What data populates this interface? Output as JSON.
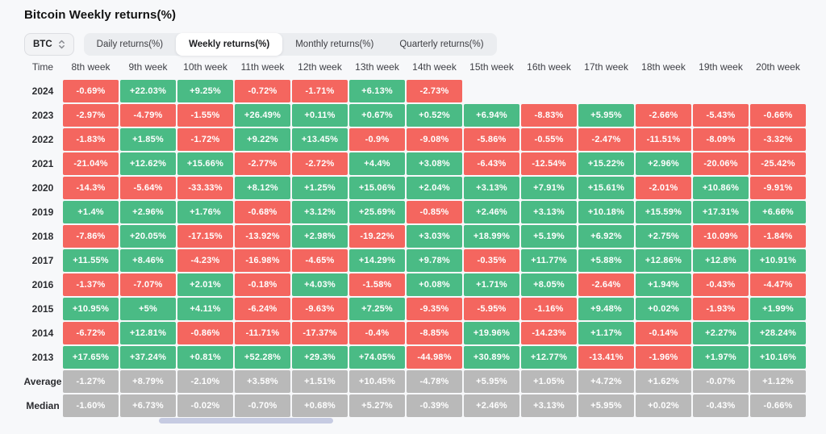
{
  "title": "Bitcoin Weekly returns(%)",
  "asset_selector": {
    "value": "BTC",
    "icon": "up-down-arrows-icon"
  },
  "tabs": [
    {
      "label": "Daily returns(%)",
      "active": false
    },
    {
      "label": "Weekly returns(%)",
      "active": true
    },
    {
      "label": "Monthly returns(%)",
      "active": false
    },
    {
      "label": "Quarterly returns(%)",
      "active": false
    }
  ],
  "colors": {
    "positive": "#4abb85",
    "negative": "#f4665f",
    "summary": "#b9b9b9",
    "scrollbar": "#c6cbe2"
  },
  "table": {
    "time_header": "Time",
    "columns": [
      "8th week",
      "9th week",
      "10th week",
      "11th week",
      "12th week",
      "13th week",
      "14th week",
      "15th week",
      "16th week",
      "17th week",
      "18th week",
      "19th week",
      "20th week"
    ],
    "rows": [
      {
        "label": "2024",
        "type": "year",
        "values": [
          "-0.69%",
          "+22.03%",
          "+9.25%",
          "-0.72%",
          "-1.71%",
          "+6.13%",
          "-2.73%",
          null,
          null,
          null,
          null,
          null,
          null
        ]
      },
      {
        "label": "2023",
        "type": "year",
        "values": [
          "-2.97%",
          "-4.79%",
          "-1.55%",
          "+26.49%",
          "+0.11%",
          "+0.67%",
          "+0.52%",
          "+6.94%",
          "-8.83%",
          "+5.95%",
          "-2.66%",
          "-5.43%",
          "-0.66%"
        ]
      },
      {
        "label": "2022",
        "type": "year",
        "values": [
          "-1.83%",
          "+1.85%",
          "-1.72%",
          "+9.22%",
          "+13.45%",
          "-0.9%",
          "-9.08%",
          "-5.86%",
          "-0.55%",
          "-2.47%",
          "-11.51%",
          "-8.09%",
          "-3.32%"
        ]
      },
      {
        "label": "2021",
        "type": "year",
        "values": [
          "-21.04%",
          "+12.62%",
          "+15.66%",
          "-2.77%",
          "-2.72%",
          "+4.4%",
          "+3.08%",
          "-6.43%",
          "-12.54%",
          "+15.22%",
          "+2.96%",
          "-20.06%",
          "-25.42%"
        ]
      },
      {
        "label": "2020",
        "type": "year",
        "values": [
          "-14.3%",
          "-5.64%",
          "-33.33%",
          "+8.12%",
          "+1.25%",
          "+15.06%",
          "+2.04%",
          "+3.13%",
          "+7.91%",
          "+15.61%",
          "-2.01%",
          "+10.86%",
          "-9.91%"
        ]
      },
      {
        "label": "2019",
        "type": "year",
        "values": [
          "+1.4%",
          "+2.96%",
          "+1.76%",
          "-0.68%",
          "+3.12%",
          "+25.69%",
          "-0.85%",
          "+2.46%",
          "+3.13%",
          "+10.18%",
          "+15.59%",
          "+17.31%",
          "+6.66%"
        ]
      },
      {
        "label": "2018",
        "type": "year",
        "values": [
          "-7.86%",
          "+20.05%",
          "-17.15%",
          "-13.92%",
          "+2.98%",
          "-19.22%",
          "+3.03%",
          "+18.99%",
          "+5.19%",
          "+6.92%",
          "+2.75%",
          "-10.09%",
          "-1.84%"
        ]
      },
      {
        "label": "2017",
        "type": "year",
        "values": [
          "+11.55%",
          "+8.46%",
          "-4.23%",
          "-16.98%",
          "-4.65%",
          "+14.29%",
          "+9.78%",
          "-0.35%",
          "+11.77%",
          "+5.88%",
          "+12.86%",
          "+12.8%",
          "+10.91%"
        ]
      },
      {
        "label": "2016",
        "type": "year",
        "values": [
          "-1.37%",
          "-7.07%",
          "+2.01%",
          "-0.18%",
          "+4.03%",
          "-1.58%",
          "+0.08%",
          "+1.71%",
          "+8.05%",
          "-2.64%",
          "+1.94%",
          "-0.43%",
          "-4.47%"
        ]
      },
      {
        "label": "2015",
        "type": "year",
        "values": [
          "+10.95%",
          "+5%",
          "+4.11%",
          "-6.24%",
          "-9.63%",
          "+7.25%",
          "-9.35%",
          "-5.95%",
          "-1.16%",
          "+9.48%",
          "+0.02%",
          "-1.93%",
          "+1.99%"
        ]
      },
      {
        "label": "2014",
        "type": "year",
        "values": [
          "-6.72%",
          "+12.81%",
          "-0.86%",
          "-11.71%",
          "-17.37%",
          "-0.4%",
          "-8.85%",
          "+19.96%",
          "-14.23%",
          "+1.17%",
          "-0.14%",
          "+2.27%",
          "+28.24%"
        ]
      },
      {
        "label": "2013",
        "type": "year",
        "values": [
          "+17.65%",
          "+37.24%",
          "+0.81%",
          "+52.28%",
          "+29.3%",
          "+74.05%",
          "-44.98%",
          "+30.89%",
          "+12.77%",
          "-13.41%",
          "-1.96%",
          "+1.97%",
          "+10.16%"
        ]
      },
      {
        "label": "Average",
        "type": "summary",
        "values": [
          "-1.27%",
          "+8.79%",
          "-2.10%",
          "+3.58%",
          "+1.51%",
          "+10.45%",
          "-4.78%",
          "+5.95%",
          "+1.05%",
          "+4.72%",
          "+1.62%",
          "-0.07%",
          "+1.12%"
        ]
      },
      {
        "label": "Median",
        "type": "summary",
        "values": [
          "-1.60%",
          "+6.73%",
          "-0.02%",
          "-0.70%",
          "+0.68%",
          "+5.27%",
          "-0.39%",
          "+2.46%",
          "+3.13%",
          "+5.95%",
          "+0.02%",
          "-0.43%",
          "-0.66%"
        ]
      }
    ]
  }
}
